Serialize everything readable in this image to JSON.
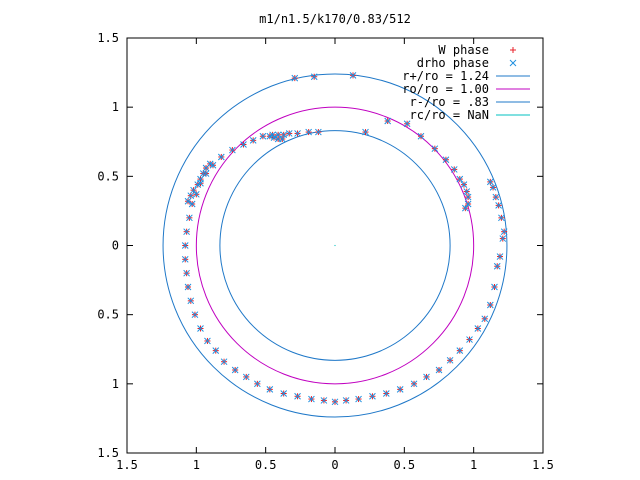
{
  "chart_data": {
    "type": "scatter",
    "title": "m1/n1.5/k170/0.83/512",
    "xlabel": "",
    "ylabel": "",
    "xlim": [
      -1.5,
      1.5
    ],
    "ylim": [
      -1.5,
      1.5
    ],
    "x_ticks": [
      {
        "value": -1.5,
        "label": "1.5"
      },
      {
        "value": -1,
        "label": "1"
      },
      {
        "value": -0.5,
        "label": "0.5"
      },
      {
        "value": 0,
        "label": "0"
      },
      {
        "value": 0.5,
        "label": "0.5"
      },
      {
        "value": 1,
        "label": "1"
      },
      {
        "value": 1.5,
        "label": "1.5"
      }
    ],
    "y_ticks": [
      {
        "value": -1.5,
        "label": "1.5"
      },
      {
        "value": -1,
        "label": "1"
      },
      {
        "value": -0.5,
        "label": "0.5"
      },
      {
        "value": 0,
        "label": "0"
      },
      {
        "value": 0.5,
        "label": "0.5"
      },
      {
        "value": 1,
        "label": "1"
      },
      {
        "value": 1.5,
        "label": "1.5"
      }
    ],
    "grid": false,
    "legend_position": "top-right",
    "circles": [
      {
        "name": "r+/ro = 1.24",
        "radius": 1.24,
        "color": "#1f78c8"
      },
      {
        "name": "ro/ro = 1.00",
        "radius": 1.0,
        "color": "#c000c0"
      },
      {
        "name": "r-/ro = .83",
        "radius": 0.83,
        "color": "#1f78c8"
      },
      {
        "name": "rc/ro = NaN",
        "radius": null,
        "color": "#00c0c0"
      }
    ],
    "series": [
      {
        "name": "W phase",
        "marker": "plus",
        "color": "#e8202a",
        "points": [
          [
            1.21,
            0.05
          ],
          [
            1.17,
            -0.15
          ],
          [
            1.15,
            -0.3
          ],
          [
            1.12,
            -0.43
          ],
          [
            1.08,
            -0.53
          ],
          [
            1.03,
            -0.6
          ],
          [
            0.97,
            -0.68
          ],
          [
            0.9,
            -0.76
          ],
          [
            0.83,
            -0.83
          ],
          [
            0.75,
            -0.9
          ],
          [
            0.66,
            -0.95
          ],
          [
            0.57,
            -1.0
          ],
          [
            0.47,
            -1.04
          ],
          [
            0.37,
            -1.07
          ],
          [
            0.27,
            -1.09
          ],
          [
            0.17,
            -1.11
          ],
          [
            0.08,
            -1.12
          ],
          [
            0.0,
            -1.13
          ],
          [
            -0.08,
            -1.12
          ],
          [
            -0.17,
            -1.11
          ],
          [
            -0.27,
            -1.09
          ],
          [
            -0.37,
            -1.07
          ],
          [
            -0.47,
            -1.04
          ],
          [
            -0.56,
            -1.0
          ],
          [
            -0.64,
            -0.95
          ],
          [
            -0.72,
            -0.9
          ],
          [
            -0.8,
            -0.84
          ],
          [
            -0.86,
            -0.76
          ],
          [
            -0.92,
            -0.69
          ],
          [
            -0.97,
            -0.6
          ],
          [
            -1.01,
            -0.5
          ],
          [
            -1.04,
            -0.4
          ],
          [
            -1.06,
            -0.3
          ],
          [
            -1.07,
            -0.2
          ],
          [
            -1.08,
            -0.1
          ],
          [
            -1.08,
            0.0
          ],
          [
            -1.07,
            0.1
          ],
          [
            -1.05,
            0.2
          ],
          [
            -1.03,
            0.3
          ],
          [
            -1.0,
            0.37
          ],
          [
            -0.97,
            0.45
          ],
          [
            -0.93,
            0.52
          ],
          [
            -0.88,
            0.58
          ],
          [
            -0.82,
            0.64
          ],
          [
            -0.74,
            0.69
          ],
          [
            -0.66,
            0.73
          ],
          [
            -0.59,
            0.76
          ],
          [
            -0.52,
            0.79
          ],
          [
            -0.45,
            0.8
          ],
          [
            -0.41,
            0.8
          ],
          [
            -0.37,
            0.8
          ],
          [
            -0.33,
            0.81
          ],
          [
            -0.27,
            0.81
          ],
          [
            -0.19,
            0.82
          ],
          [
            -0.12,
            0.82
          ],
          [
            -0.29,
            1.21
          ],
          [
            -0.15,
            1.22
          ],
          [
            0.13,
            1.23
          ],
          [
            0.22,
            0.82
          ],
          [
            0.38,
            0.9
          ],
          [
            0.52,
            0.88
          ],
          [
            0.62,
            0.79
          ],
          [
            0.72,
            0.7
          ],
          [
            0.8,
            0.62
          ],
          [
            0.86,
            0.55
          ],
          [
            0.9,
            0.48
          ],
          [
            0.93,
            0.44
          ],
          [
            0.95,
            0.39
          ],
          [
            0.96,
            0.35
          ],
          [
            0.96,
            0.3
          ],
          [
            0.94,
            0.27
          ],
          [
            1.12,
            0.46
          ],
          [
            1.14,
            0.42
          ],
          [
            1.16,
            0.35
          ],
          [
            1.18,
            0.29
          ],
          [
            1.2,
            0.2
          ],
          [
            1.22,
            0.1
          ],
          [
            1.19,
            -0.08
          ],
          [
            -1.06,
            0.32
          ],
          [
            -1.04,
            0.36
          ],
          [
            -1.02,
            0.4
          ],
          [
            -0.99,
            0.44
          ],
          [
            -0.97,
            0.48
          ],
          [
            -0.95,
            0.52
          ],
          [
            -0.93,
            0.56
          ],
          [
            -0.9,
            0.59
          ],
          [
            -0.47,
            0.79
          ],
          [
            -0.44,
            0.78
          ],
          [
            -0.41,
            0.77
          ],
          [
            -0.38,
            0.77
          ]
        ]
      },
      {
        "name": "drho phase",
        "marker": "cross",
        "color": "#1f90e0",
        "points": [
          [
            1.21,
            0.05
          ],
          [
            1.17,
            -0.15
          ],
          [
            1.15,
            -0.3
          ],
          [
            1.12,
            -0.43
          ],
          [
            1.08,
            -0.53
          ],
          [
            1.03,
            -0.6
          ],
          [
            0.97,
            -0.68
          ],
          [
            0.9,
            -0.76
          ],
          [
            0.83,
            -0.83
          ],
          [
            0.75,
            -0.9
          ],
          [
            0.66,
            -0.95
          ],
          [
            0.57,
            -1.0
          ],
          [
            0.47,
            -1.04
          ],
          [
            0.37,
            -1.07
          ],
          [
            0.27,
            -1.09
          ],
          [
            0.17,
            -1.11
          ],
          [
            0.08,
            -1.12
          ],
          [
            0.0,
            -1.13
          ],
          [
            -0.08,
            -1.12
          ],
          [
            -0.17,
            -1.11
          ],
          [
            -0.27,
            -1.09
          ],
          [
            -0.37,
            -1.07
          ],
          [
            -0.47,
            -1.04
          ],
          [
            -0.56,
            -1.0
          ],
          [
            -0.64,
            -0.95
          ],
          [
            -0.72,
            -0.9
          ],
          [
            -0.8,
            -0.84
          ],
          [
            -0.86,
            -0.76
          ],
          [
            -0.92,
            -0.69
          ],
          [
            -0.97,
            -0.6
          ],
          [
            -1.01,
            -0.5
          ],
          [
            -1.04,
            -0.4
          ],
          [
            -1.06,
            -0.3
          ],
          [
            -1.07,
            -0.2
          ],
          [
            -1.08,
            -0.1
          ],
          [
            -1.08,
            0.0
          ],
          [
            -1.07,
            0.1
          ],
          [
            -1.05,
            0.2
          ],
          [
            -1.03,
            0.3
          ],
          [
            -1.0,
            0.37
          ],
          [
            -0.97,
            0.45
          ],
          [
            -0.93,
            0.52
          ],
          [
            -0.88,
            0.58
          ],
          [
            -0.82,
            0.64
          ],
          [
            -0.74,
            0.69
          ],
          [
            -0.66,
            0.73
          ],
          [
            -0.59,
            0.76
          ],
          [
            -0.52,
            0.79
          ],
          [
            -0.45,
            0.8
          ],
          [
            -0.41,
            0.8
          ],
          [
            -0.37,
            0.8
          ],
          [
            -0.33,
            0.81
          ],
          [
            -0.27,
            0.81
          ],
          [
            -0.19,
            0.82
          ],
          [
            -0.12,
            0.82
          ],
          [
            -0.29,
            1.21
          ],
          [
            -0.15,
            1.22
          ],
          [
            0.13,
            1.23
          ],
          [
            0.22,
            0.82
          ],
          [
            0.38,
            0.9
          ],
          [
            0.52,
            0.88
          ],
          [
            0.62,
            0.79
          ],
          [
            0.72,
            0.7
          ],
          [
            0.8,
            0.62
          ],
          [
            0.86,
            0.55
          ],
          [
            0.9,
            0.48
          ],
          [
            0.93,
            0.44
          ],
          [
            0.95,
            0.39
          ],
          [
            0.96,
            0.35
          ],
          [
            0.96,
            0.3
          ],
          [
            0.94,
            0.27
          ],
          [
            1.12,
            0.46
          ],
          [
            1.14,
            0.42
          ],
          [
            1.16,
            0.35
          ],
          [
            1.18,
            0.29
          ],
          [
            1.2,
            0.2
          ],
          [
            1.22,
            0.1
          ],
          [
            1.19,
            -0.08
          ],
          [
            -1.06,
            0.32
          ],
          [
            -1.04,
            0.36
          ],
          [
            -1.02,
            0.4
          ],
          [
            -0.99,
            0.44
          ],
          [
            -0.97,
            0.48
          ],
          [
            -0.95,
            0.52
          ],
          [
            -0.93,
            0.56
          ],
          [
            -0.9,
            0.59
          ],
          [
            -0.47,
            0.79
          ],
          [
            -0.44,
            0.78
          ],
          [
            -0.41,
            0.77
          ],
          [
            -0.38,
            0.77
          ]
        ]
      }
    ]
  }
}
